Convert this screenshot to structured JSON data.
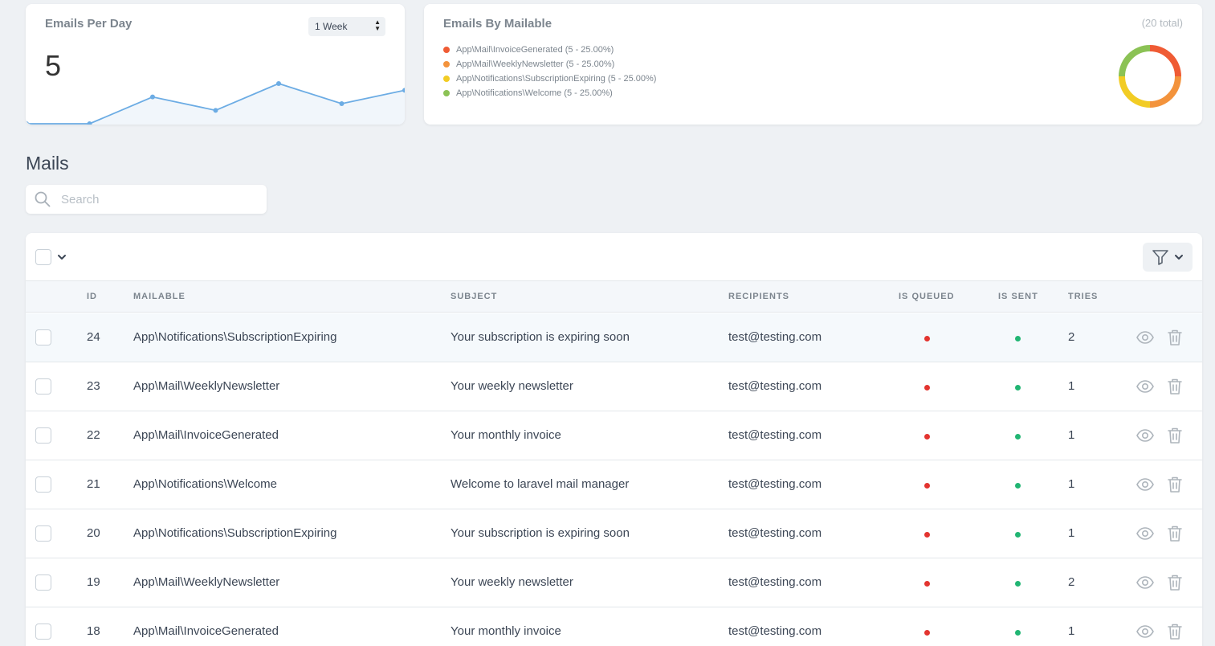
{
  "emails_per_day": {
    "title": "Emails Per Day",
    "range_label": "1 Week",
    "count": "5",
    "sparkline_values": [
      0,
      0,
      2,
      1,
      3,
      1.5,
      2.5
    ],
    "line_color": "#6cace4"
  },
  "emails_by_mailable": {
    "title": "Emails By Mailable",
    "total": "(20 total)",
    "legend": [
      {
        "label": "App\\Mail\\InvoiceGenerated (5 - 25.00%)",
        "color": "#ef5b34",
        "value": 5
      },
      {
        "label": "App\\Mail\\WeeklyNewsletter (5 - 25.00%)",
        "color": "#f3933c",
        "value": 5
      },
      {
        "label": "App\\Notifications\\SubscriptionExpiring (5 - 25.00%)",
        "color": "#f2cc24",
        "value": 5
      },
      {
        "label": "App\\Notifications\\Welcome (5 - 25.00%)",
        "color": "#8bc255",
        "value": 5
      }
    ]
  },
  "mails": {
    "heading": "Mails",
    "search_placeholder": "Search",
    "columns": {
      "id": "ID",
      "mailable": "MAILABLE",
      "subject": "SUBJECT",
      "recipients": "RECIPIENTS",
      "is_queued": "IS QUEUED",
      "is_sent": "IS SENT",
      "tries": "TRIES"
    },
    "status_colors": {
      "queued": "#e3342f",
      "sent": "#21b573"
    },
    "rows": [
      {
        "id": "24",
        "mailable": "App\\Notifications\\SubscriptionExpiring",
        "subject": "Your subscription is expiring soon",
        "recipients": "test@testing.com",
        "tries": "2"
      },
      {
        "id": "23",
        "mailable": "App\\Mail\\WeeklyNewsletter",
        "subject": "Your weekly newsletter",
        "recipients": "test@testing.com",
        "tries": "1"
      },
      {
        "id": "22",
        "mailable": "App\\Mail\\InvoiceGenerated",
        "subject": "Your monthly invoice",
        "recipients": "test@testing.com",
        "tries": "1"
      },
      {
        "id": "21",
        "mailable": "App\\Notifications\\Welcome",
        "subject": "Welcome to laravel mail manager",
        "recipients": "test@testing.com",
        "tries": "1"
      },
      {
        "id": "20",
        "mailable": "App\\Notifications\\SubscriptionExpiring",
        "subject": "Your subscription is expiring soon",
        "recipients": "test@testing.com",
        "tries": "1"
      },
      {
        "id": "19",
        "mailable": "App\\Mail\\WeeklyNewsletter",
        "subject": "Your weekly newsletter",
        "recipients": "test@testing.com",
        "tries": "2"
      },
      {
        "id": "18",
        "mailable": "App\\Mail\\InvoiceGenerated",
        "subject": "Your monthly invoice",
        "recipients": "test@testing.com",
        "tries": "1"
      }
    ]
  }
}
